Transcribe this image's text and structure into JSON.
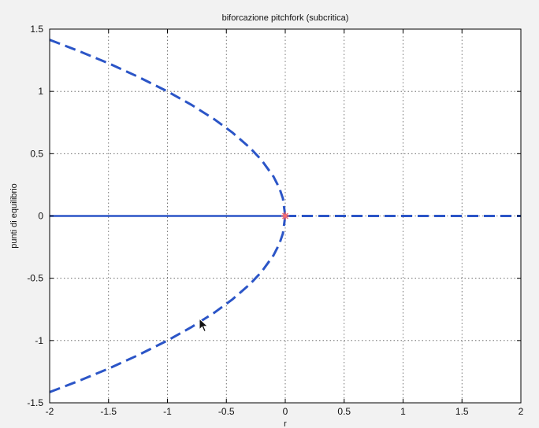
{
  "chart_data": {
    "type": "line",
    "title": "biforcazione pitchfork (subcritica)",
    "xlabel": "r",
    "ylabel": "punti di equilibrio",
    "xlim": [
      -2,
      2
    ],
    "ylim": [
      -1.5,
      1.5
    ],
    "grid": true,
    "xticks": [
      -2,
      -1.5,
      -1,
      -0.5,
      0,
      0.5,
      1,
      1.5,
      2
    ],
    "yticks": [
      -1.5,
      -1,
      -0.5,
      0,
      0.5,
      1,
      1.5
    ],
    "colors": {
      "series": "#2b55c7",
      "marker": "#ff6a6a",
      "background": "#f2f2f2",
      "axes_bg": "#ffffff"
    },
    "series": [
      {
        "style": "dashed",
        "x": [
          -2,
          -1.75,
          -1.5,
          -1.25,
          -1,
          -0.8,
          -0.6,
          -0.45,
          -0.3,
          -0.2,
          -0.1,
          -0.05,
          -0.02,
          0
        ],
        "y": [
          1.414,
          1.323,
          1.225,
          1.118,
          1.0,
          0.894,
          0.775,
          0.671,
          0.548,
          0.447,
          0.316,
          0.224,
          0.141,
          0
        ]
      },
      {
        "style": "dashed",
        "x": [
          -2,
          -1.75,
          -1.5,
          -1.25,
          -1,
          -0.8,
          -0.6,
          -0.45,
          -0.3,
          -0.2,
          -0.1,
          -0.05,
          -0.02,
          0
        ],
        "y": [
          -1.414,
          -1.323,
          -1.225,
          -1.118,
          -1.0,
          -0.894,
          -0.775,
          -0.671,
          -0.548,
          -0.447,
          -0.316,
          -0.224,
          -0.141,
          0
        ]
      },
      {
        "style": "solid",
        "x": [
          -2,
          0
        ],
        "y": [
          0,
          0
        ]
      },
      {
        "style": "dashed",
        "x": [
          0,
          2
        ],
        "y": [
          0,
          0
        ]
      }
    ],
    "markers": [
      {
        "x": 0,
        "y": 0,
        "symbol": "asterisk"
      }
    ]
  }
}
